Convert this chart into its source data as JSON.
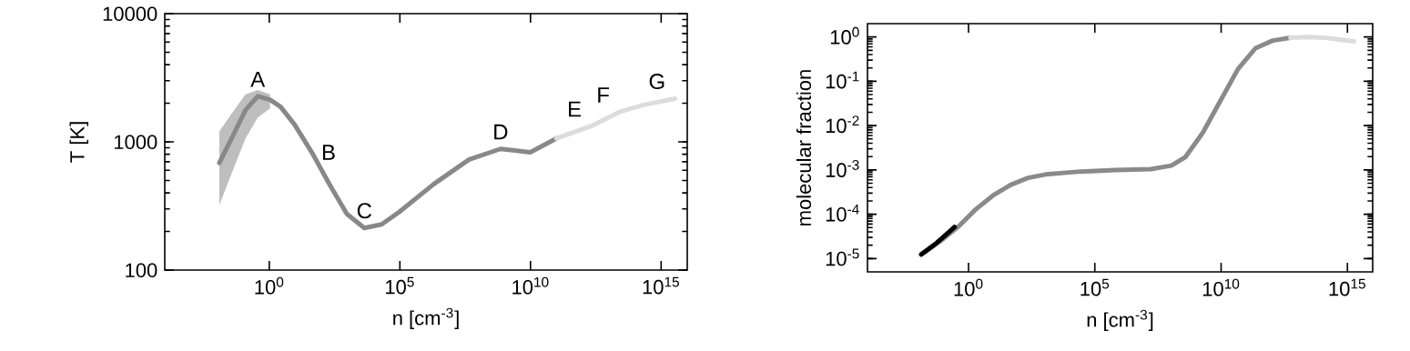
{
  "chart_data": [
    {
      "type": "line",
      "xlabel": "n [cm$^{-3}$]",
      "ylabel": "T [K]",
      "log": "xy",
      "xlim": [
        0.0001,
        1e+16
      ],
      "ylim": [
        100,
        10000
      ],
      "xticks": [
        {
          "value": 1,
          "label": "10$^{0}$"
        },
        {
          "value": 100000.0,
          "label": "10$^{5}$"
        },
        {
          "value": 10000000000.0,
          "label": "10$^{10}$"
        },
        {
          "value": 1000000000000000.0,
          "label": "10$^{15}$"
        }
      ],
      "yticks": [
        100,
        1000,
        10000
      ],
      "annotations": [
        {
          "text": "A",
          "x": 0.363,
          "y": 2270
        },
        {
          "text": "B",
          "x": 42.7,
          "y": 828
        },
        {
          "text": "C",
          "x": 4370,
          "y": 213
        },
        {
          "text": "D",
          "x": 710000000.0,
          "y": 881
        },
        {
          "text": "E",
          "x": 2100000000000.0,
          "y": 1327
        },
        {
          "text": "F",
          "x": 25000000000000.0,
          "y": 1710
        },
        {
          "text": "G",
          "x": 3400000000000000.0,
          "y": 2173
        }
      ],
      "series": [
        {
          "color": "#888888",
          "x": [
            0.0123,
            0.0363,
            0.123,
            0.363,
            1.07,
            2.69,
            9.12,
            42.7,
            200,
            933,
            4370,
            20000.0,
            93000.0,
            2000000.0,
            45000000.0,
            710000000.0,
            2500000000.0,
            9800000000.0,
            98000000000.0
          ],
          "values": [
            685,
            1064,
            1766,
            2270,
            2133,
            1879,
            1371,
            828,
            468,
            274,
            213,
            227,
            283,
            469,
            729,
            881,
            855,
            828,
            1064
          ],
          "lower": [
            321,
            566,
            1064,
            1549,
            1820,
            null,
            null,
            null,
            null,
            null,
            null,
            null,
            null,
            null,
            null,
            null,
            null,
            null,
            null
          ],
          "upper": [
            1208,
            1656,
            2344,
            2541,
            2344,
            null,
            null,
            null,
            null,
            null,
            null,
            null,
            null,
            null,
            null,
            null,
            null,
            null,
            null
          ]
        },
        {
          "color": "#dcdcdc",
          "x": [
            98000000000.0,
            2100000000000.0,
            25000000000000.0,
            210000000000000.0,
            3400000000000000.0
          ],
          "values": [
            1064,
            1327,
            1710,
            1941,
            2173
          ]
        }
      ]
    },
    {
      "type": "line",
      "xlabel": "n [cm$^{-3}$]",
      "ylabel": "molecular fraction",
      "log": "xy",
      "xlim": [
        0.0001,
        1e+16
      ],
      "ylim": [
        5e-06,
        2
      ],
      "xticks": [
        {
          "value": 1,
          "label": "10$^{0}$"
        },
        {
          "value": 100000.0,
          "label": "10$^{5}$"
        },
        {
          "value": 10000000000.0,
          "label": "10$^{10}$"
        },
        {
          "value": 1000000000000000.0,
          "label": "10$^{15}$"
        }
      ],
      "yticks": [
        {
          "value": 1e-05,
          "label": "10$^{-5}$"
        },
        {
          "value": 0.0001,
          "label": "10$^{-4}$"
        },
        {
          "value": 0.001,
          "label": "10$^{-3}$"
        },
        {
          "value": 0.01,
          "label": "10$^{-2}$"
        },
        {
          "value": 0.1,
          "label": "10$^{-1}$"
        },
        {
          "value": 1,
          "label": "10$^{0}$"
        }
      ],
      "series": [
        {
          "color": "#8a8a8a",
          "x": [
            0.0135,
            0.078,
            0.38,
            1.9,
            9.3,
            46,
            226,
            1120,
            27000.0,
            660000.0,
            16000000.0,
            107000000.0,
            390000000.0,
            1900000000.0,
            9300000000.0,
            46000000000.0,
            230000000000.0,
            1100000000000.0,
            5500000000000.0
          ],
          "values": [
            1.24e-05,
            2.49e-05,
            5.15e-05,
            0.000128,
            0.000265,
            0.000458,
            0.00066,
            0.00079,
            0.00092,
            0.00099,
            0.00104,
            0.00125,
            0.00197,
            0.007,
            0.036,
            0.187,
            0.558,
            0.83,
            0.96
          ]
        },
        {
          "color": "#dcdcdc",
          "x": [
            5500000000000.0,
            27000000000000.0,
            130000000000000.0,
            1800000000000000.0
          ],
          "values": [
            0.96,
            1.0,
            0.96,
            0.8
          ]
        },
        {
          "color": "#000000",
          "x": [
            0.0135,
            0.056,
            0.28
          ],
          "values": [
            1.24e-05,
            2.27e-05,
            5.15e-05
          ]
        }
      ]
    }
  ]
}
